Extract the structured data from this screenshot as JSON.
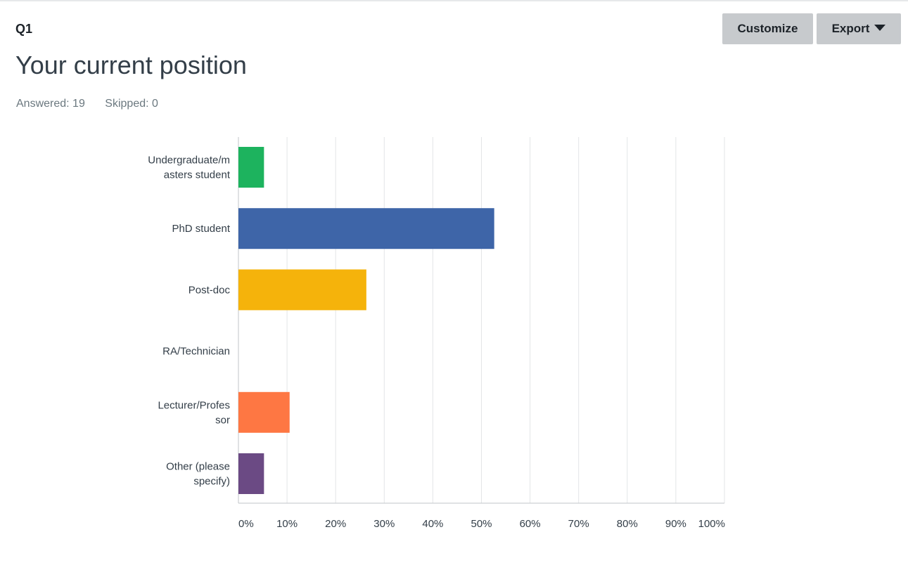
{
  "header": {
    "question_number": "Q1",
    "title": "Your current position",
    "answered_label": "Answered: 19",
    "skipped_label": "Skipped: 0"
  },
  "toolbar": {
    "customize_label": "Customize",
    "export_label": "Export",
    "export_icon": "caret-down-icon"
  },
  "chart_data": {
    "type": "bar",
    "orientation": "horizontal",
    "title": "",
    "xlabel": "",
    "ylabel": "",
    "xlim": [
      0,
      100
    ],
    "grid": true,
    "legend": "none",
    "categories": [
      [
        "Undergraduate/m",
        "asters student"
      ],
      [
        "PhD student"
      ],
      [
        "Post-doc"
      ],
      [
        "RA/Technician"
      ],
      [
        "Lecturer/Profes",
        "sor"
      ],
      [
        "Other (please",
        "specify)"
      ]
    ],
    "values": [
      5.26,
      52.63,
      26.32,
      0,
      10.53,
      5.26
    ],
    "colors": [
      "#1db35e",
      "#3e65a8",
      "#f5b30b",
      "#999999",
      "#fe7743",
      "#6b4a84"
    ],
    "ticks": [
      "0%",
      "10%",
      "20%",
      "30%",
      "40%",
      "50%",
      "60%",
      "70%",
      "80%",
      "90%",
      "100%"
    ]
  }
}
